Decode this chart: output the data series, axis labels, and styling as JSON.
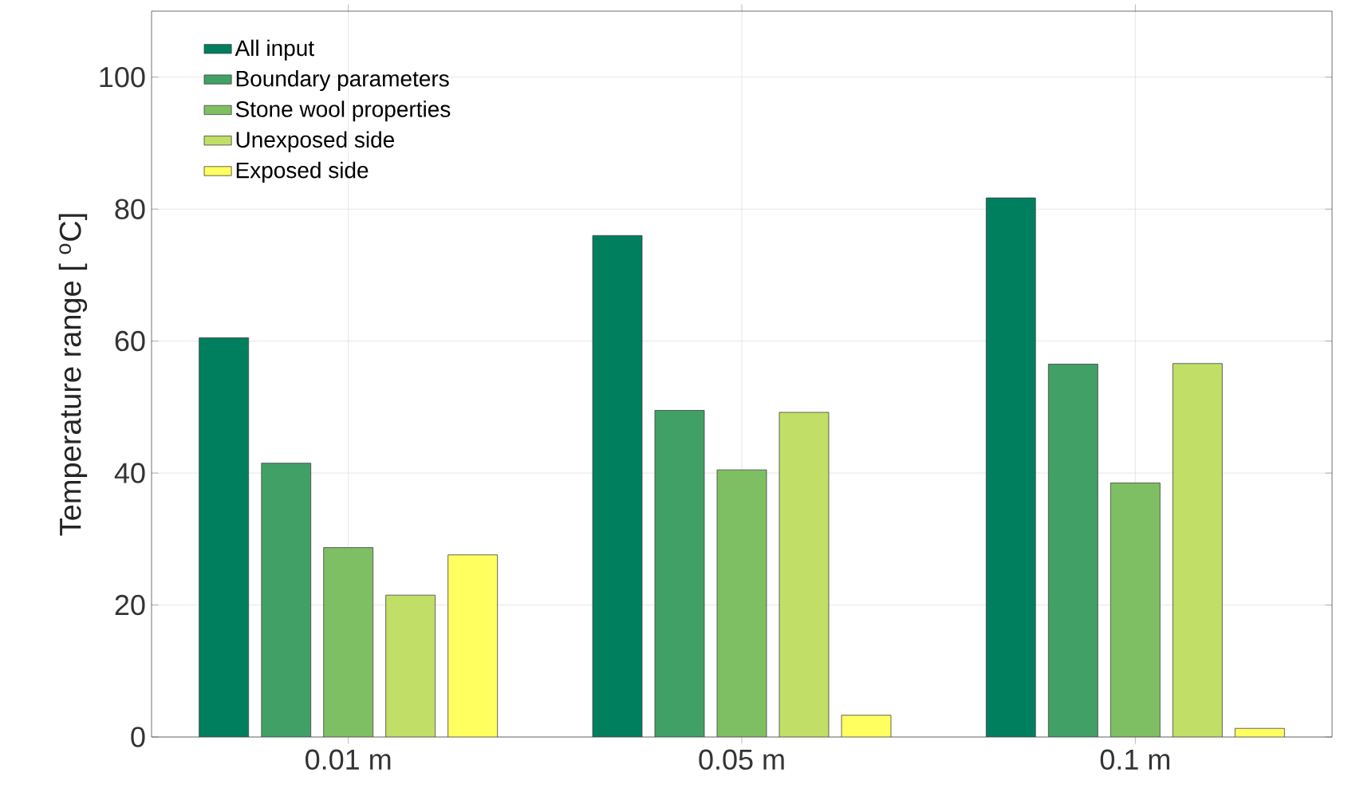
{
  "chart_data": {
    "type": "bar",
    "ylabel": "Temperature range [ $^{o}$C]",
    "categories": [
      "0.01 m",
      "0.05 m",
      "0.1 m"
    ],
    "series": [
      {
        "name": "All input",
        "color": "#007f5f",
        "values": [
          60.5,
          76,
          81.7
        ]
      },
      {
        "name": "Boundary parameters",
        "color": "#41a066",
        "values": [
          41.5,
          49.5,
          56.5
        ]
      },
      {
        "name": "Stone wool properties",
        "color": "#7fbf63",
        "values": [
          28.7,
          40.5,
          38.5
        ]
      },
      {
        "name": "Unexposed side",
        "color": "#c1df66",
        "values": [
          21.5,
          49.2,
          56.6
        ]
      },
      {
        "name": "Exposed side",
        "color": "#ffff5f",
        "values": [
          27.6,
          3.3,
          1.3
        ]
      }
    ],
    "ylim": [
      0,
      110
    ],
    "yticks": [
      0,
      20,
      40,
      60,
      80,
      100
    ],
    "grid": true,
    "legend": "top left"
  }
}
